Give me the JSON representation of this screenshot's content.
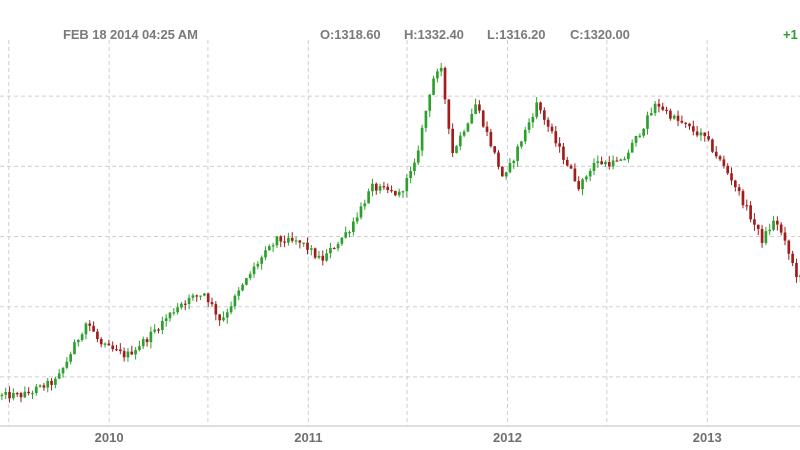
{
  "header": {
    "timestamp": "FEB 18 2014 04:25 AM",
    "open": "O:1318.60",
    "high": "H:1332.40",
    "low": "L:1316.20",
    "close": "C:1320.00",
    "change": "+1"
  },
  "colors": {
    "up": "#2ca02c",
    "down": "#a11d1d",
    "grid": "#cfcfcf",
    "text": "#7a7a7a",
    "change": "#2e9e2e"
  },
  "chart_data": {
    "type": "candlestick",
    "title": "",
    "xlabel": "",
    "ylabel": "",
    "x_tick_labels": [
      "2010",
      "2011",
      "2012",
      "2013"
    ],
    "x_tick_positions": [
      "2010-01-01",
      "2011-01-01",
      "2012-01-01",
      "2013-01-01"
    ],
    "x_range": [
      "2009-06-15",
      "2013-06-20"
    ],
    "y_range": [
      860,
      1960
    ],
    "y_gridlines": [
      1000,
      1200,
      1400,
      1600,
      1800
    ],
    "grid": true,
    "legend": "none",
    "series": [
      {
        "values": [
          [
            "2009-06-15",
            945
          ],
          [
            "2009-08-01",
            948
          ],
          [
            "2009-10-01",
            990
          ],
          [
            "2009-11-25",
            1160
          ],
          [
            "2009-12-20",
            1090
          ],
          [
            "2010-02-05",
            1060
          ],
          [
            "2010-03-15",
            1110
          ],
          [
            "2010-05-15",
            1210
          ],
          [
            "2010-06-28",
            1240
          ],
          [
            "2010-07-28",
            1160
          ],
          [
            "2010-10-01",
            1320
          ],
          [
            "2010-11-08",
            1390
          ],
          [
            "2010-12-25",
            1380
          ],
          [
            "2011-01-28",
            1330
          ],
          [
            "2011-03-20",
            1420
          ],
          [
            "2011-05-01",
            1540
          ],
          [
            "2011-06-20",
            1520
          ],
          [
            "2011-07-18",
            1600
          ],
          [
            "2011-08-20",
            1850
          ],
          [
            "2011-09-05",
            1870
          ],
          [
            "2011-09-26",
            1640
          ],
          [
            "2011-11-08",
            1780
          ],
          [
            "2011-12-29",
            1560
          ],
          [
            "2012-02-28",
            1780
          ],
          [
            "2012-04-01",
            1670
          ],
          [
            "2012-05-16",
            1540
          ],
          [
            "2012-06-10",
            1610
          ],
          [
            "2012-08-01",
            1610
          ],
          [
            "2012-10-04",
            1780
          ],
          [
            "2012-11-10",
            1730
          ],
          [
            "2013-01-01",
            1680
          ],
          [
            "2013-02-20",
            1560
          ],
          [
            "2013-04-15",
            1390
          ],
          [
            "2013-05-10",
            1450
          ],
          [
            "2013-06-20",
            1280
          ]
        ]
      }
    ]
  }
}
